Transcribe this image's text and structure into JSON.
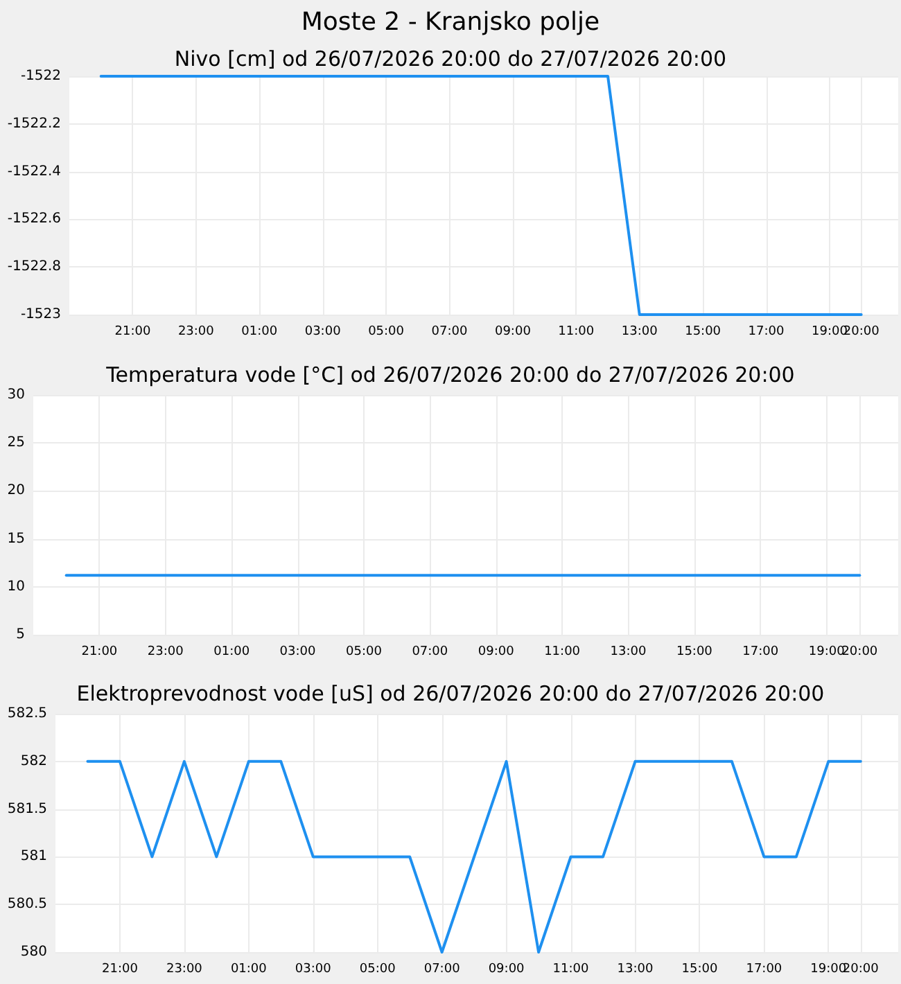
{
  "chart_data": [
    {
      "type": "line",
      "title": "Moste 2 - Kranjsko polje",
      "subtitle": "Nivo [cm] od 26/07/2026 20:00 do 27/07/2026 20:00",
      "x": [
        "2026-07-26T20:00",
        "2026-07-27T12:00",
        "2026-07-27T13:00",
        "2026-07-27T20:00"
      ],
      "series": [
        {
          "color": "#1e90f0",
          "values": [
            -1522,
            -1522,
            -1523,
            -1523
          ]
        }
      ],
      "xlim": [
        "2026-07-26T19:00",
        "2026-07-27T21:10"
      ],
      "xticks": [
        {
          "value": "2026-07-26T21:00",
          "label": "21:00"
        },
        {
          "value": "2026-07-26T23:00",
          "label": "23:00"
        },
        {
          "value": "2026-07-27T01:00",
          "label": "01:00"
        },
        {
          "value": "2026-07-27T03:00",
          "label": "03:00"
        },
        {
          "value": "2026-07-27T05:00",
          "label": "05:00"
        },
        {
          "value": "2026-07-27T07:00",
          "label": "07:00"
        },
        {
          "value": "2026-07-27T09:00",
          "label": "09:00"
        },
        {
          "value": "2026-07-27T11:00",
          "label": "11:00"
        },
        {
          "value": "2026-07-27T13:00",
          "label": "13:00"
        },
        {
          "value": "2026-07-27T15:00",
          "label": "15:00"
        },
        {
          "value": "2026-07-27T17:00",
          "label": "17:00"
        },
        {
          "value": "2026-07-27T19:00",
          "label": "19:00"
        },
        {
          "value": "2026-07-27T20:00",
          "label": "20:00"
        }
      ],
      "ylim": [
        -1523,
        -1522
      ],
      "yticks": [
        -1523,
        -1522.8,
        -1522.6,
        -1522.4,
        -1522.2,
        -1522
      ],
      "grid": true,
      "marker": "none",
      "line_style": "solid"
    },
    {
      "type": "line",
      "title": "Temperatura vode [°C] od 26/07/2026 20:00 do 27/07/2026 20:00",
      "x": [
        "2026-07-26T20:00",
        "2026-07-27T20:00"
      ],
      "series": [
        {
          "color": "#1e90f0",
          "values": [
            11.2,
            11.2
          ]
        }
      ],
      "xlim": [
        "2026-07-26T19:00",
        "2026-07-27T21:10"
      ],
      "xticks": [
        {
          "value": "2026-07-26T21:00",
          "label": "21:00"
        },
        {
          "value": "2026-07-26T23:00",
          "label": "23:00"
        },
        {
          "value": "2026-07-27T01:00",
          "label": "01:00"
        },
        {
          "value": "2026-07-27T03:00",
          "label": "03:00"
        },
        {
          "value": "2026-07-27T05:00",
          "label": "05:00"
        },
        {
          "value": "2026-07-27T07:00",
          "label": "07:00"
        },
        {
          "value": "2026-07-27T09:00",
          "label": "09:00"
        },
        {
          "value": "2026-07-27T11:00",
          "label": "11:00"
        },
        {
          "value": "2026-07-27T13:00",
          "label": "13:00"
        },
        {
          "value": "2026-07-27T15:00",
          "label": "15:00"
        },
        {
          "value": "2026-07-27T17:00",
          "label": "17:00"
        },
        {
          "value": "2026-07-27T19:00",
          "label": "19:00"
        },
        {
          "value": "2026-07-27T20:00",
          "label": "20:00"
        }
      ],
      "ylim": [
        5,
        30
      ],
      "yticks": [
        5,
        10,
        15,
        20,
        25,
        30
      ],
      "grid": true,
      "marker": "none",
      "line_style": "solid"
    },
    {
      "type": "line",
      "title": "Elektroprevodnost vode [uS] od 26/07/2026 20:00 do 27/07/2026 20:00",
      "x": [
        "2026-07-26T20:00",
        "2026-07-26T21:00",
        "2026-07-26T22:00",
        "2026-07-26T23:00",
        "2026-07-27T00:00",
        "2026-07-27T01:00",
        "2026-07-27T02:00",
        "2026-07-27T03:00",
        "2026-07-27T06:00",
        "2026-07-27T07:00",
        "2026-07-27T09:00",
        "2026-07-27T10:00",
        "2026-07-27T11:00",
        "2026-07-27T12:00",
        "2026-07-27T13:00",
        "2026-07-27T16:00",
        "2026-07-27T17:00",
        "2026-07-27T18:00",
        "2026-07-27T19:00",
        "2026-07-27T20:00"
      ],
      "series": [
        {
          "color": "#1e90f0",
          "values": [
            582,
            582,
            581,
            582,
            581,
            582,
            582,
            581,
            581,
            580,
            582,
            580,
            581,
            581,
            582,
            582,
            581,
            581,
            582,
            582
          ]
        }
      ],
      "xlim": [
        "2026-07-26T19:00",
        "2026-07-27T21:10"
      ],
      "xticks": [
        {
          "value": "2026-07-26T21:00",
          "label": "21:00"
        },
        {
          "value": "2026-07-26T23:00",
          "label": "23:00"
        },
        {
          "value": "2026-07-27T01:00",
          "label": "01:00"
        },
        {
          "value": "2026-07-27T03:00",
          "label": "03:00"
        },
        {
          "value": "2026-07-27T05:00",
          "label": "05:00"
        },
        {
          "value": "2026-07-27T07:00",
          "label": "07:00"
        },
        {
          "value": "2026-07-27T09:00",
          "label": "09:00"
        },
        {
          "value": "2026-07-27T11:00",
          "label": "11:00"
        },
        {
          "value": "2026-07-27T13:00",
          "label": "13:00"
        },
        {
          "value": "2026-07-27T15:00",
          "label": "15:00"
        },
        {
          "value": "2026-07-27T17:00",
          "label": "17:00"
        },
        {
          "value": "2026-07-27T19:00",
          "label": "19:00"
        },
        {
          "value": "2026-07-27T20:00",
          "label": "20:00"
        }
      ],
      "ylim": [
        580,
        582.5
      ],
      "yticks": [
        580,
        580.5,
        581,
        581.5,
        582,
        582.5
      ],
      "grid": true,
      "marker": "none",
      "line_style": "solid"
    }
  ]
}
